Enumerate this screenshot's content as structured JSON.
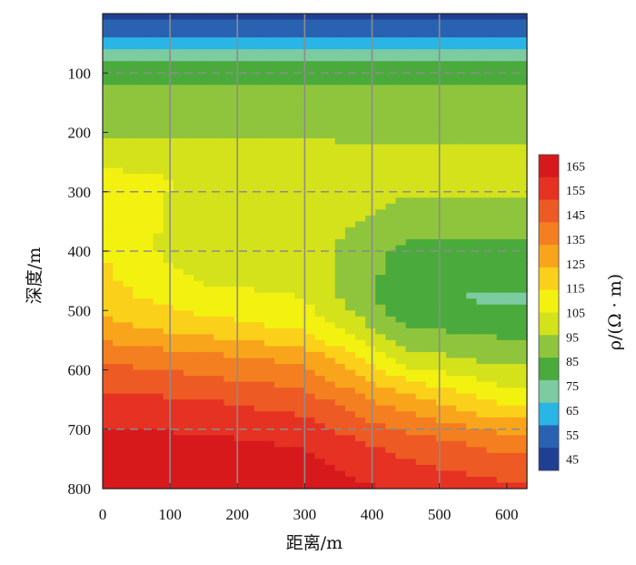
{
  "chart_data": {
    "type": "heatmap",
    "title": "",
    "xlabel": "距离/m",
    "ylabel": "深度/m",
    "xlim": [
      0,
      630
    ],
    "ylim": [
      0,
      800
    ],
    "y_inverted": true,
    "x_ticks": [
      "0",
      "100",
      "200",
      "300",
      "400",
      "500",
      "600"
    ],
    "y_ticks": [
      "100",
      "200",
      "300",
      "400",
      "500",
      "600",
      "700",
      "800"
    ],
    "vertical_gridlines_x": [
      100,
      200,
      300,
      400,
      500
    ],
    "dashed_gridlines_depth": [
      100,
      300,
      400,
      700
    ],
    "colorbar": {
      "label": "ρ/(Ω · m)",
      "ticks": [
        "165",
        "155",
        "145",
        "135",
        "125",
        "115",
        "105",
        "95",
        "85",
        "75",
        "65",
        "55",
        "45"
      ],
      "colors": [
        "#d7191c",
        "#e53223",
        "#ee5a24",
        "#f47f20",
        "#f9a51c",
        "#fbd01a",
        "#f3f110",
        "#d4e21b",
        "#8fc53d",
        "#4aab3c",
        "#7ccba1",
        "#29b5e6",
        "#2a62b2",
        "#1f3f93"
      ]
    },
    "depth_profile": {
      "depth": [
        0,
        20,
        50,
        80,
        120,
        200,
        280,
        400,
        480,
        530,
        580,
        650,
        720,
        800
      ],
      "x_0": [
        45,
        58,
        66,
        80,
        88,
        95,
        108,
        113,
        117,
        125,
        138,
        150,
        160,
        165
      ],
      "x_150": [
        45,
        58,
        66,
        80,
        88,
        95,
        104,
        98,
        108,
        118,
        133,
        148,
        158,
        163
      ],
      "x_300": [
        45,
        58,
        66,
        80,
        88,
        95,
        104,
        100,
        105,
        112,
        128,
        143,
        155,
        162
      ],
      "x_450": [
        45,
        58,
        66,
        80,
        88,
        95,
        100,
        86,
        80,
        88,
        100,
        125,
        143,
        155
      ],
      "x_600": [
        45,
        58,
        66,
        80,
        88,
        95,
        100,
        85,
        78,
        85,
        93,
        110,
        135,
        150
      ]
    }
  }
}
